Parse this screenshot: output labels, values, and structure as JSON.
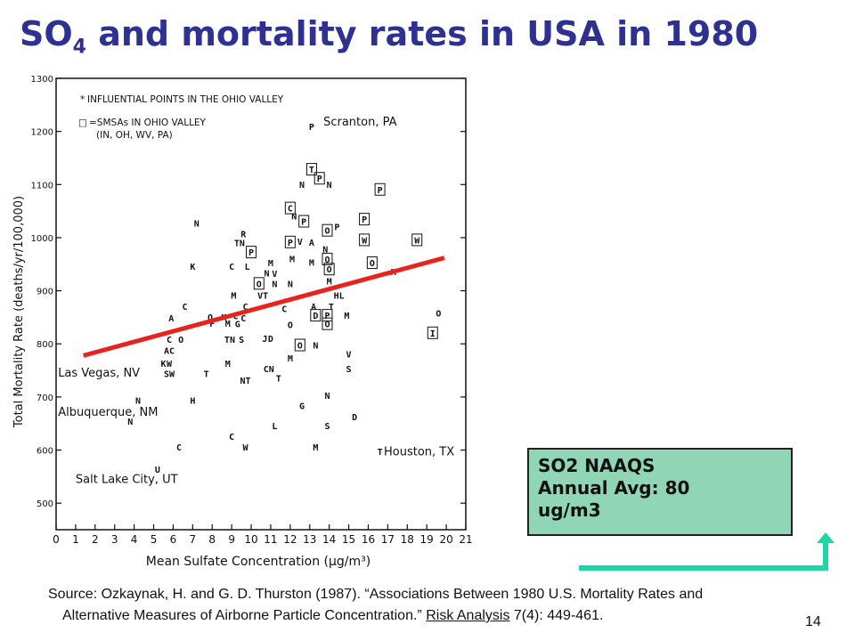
{
  "title": {
    "prefix": "SO",
    "subscript": "4",
    "suffix": " and  mortality rates in USA in 1980"
  },
  "chart_data": {
    "type": "scatter",
    "xlabel": "Mean Sulfate Concentration (μg/m³)",
    "ylabel": "Total Mortality Rate (deaths/yr/100,000)",
    "xlim": [
      0,
      21
    ],
    "ylim": [
      450,
      1300
    ],
    "x_ticks": [
      0,
      1,
      2,
      3,
      4,
      5,
      6,
      7,
      8,
      9,
      10,
      11,
      12,
      13,
      14,
      15,
      16,
      17,
      18,
      19,
      20,
      21
    ],
    "y_ticks": [
      500,
      600,
      700,
      800,
      900,
      1000,
      1100,
      1200,
      1300
    ],
    "legend": [
      {
        "symbol": "*",
        "label": "INFLUENTIAL POINTS IN THE OHIO VALLEY"
      },
      {
        "symbol": "□",
        "label": "=SMSAs  IN  OHIO VALLEY"
      },
      {
        "symbol": "",
        "label": "(IN, OH, WV, PA)"
      }
    ],
    "annotations": [
      {
        "text": "Scranton, PA",
        "x": 13.7,
        "y": 1211
      },
      {
        "text": "Las Vegas, NV",
        "x": 0.1,
        "y": 738
      },
      {
        "text": "Albuquerque, NM",
        "x": 0.1,
        "y": 665
      },
      {
        "text": "Salt Lake City, UT",
        "x": 1.0,
        "y": 538
      },
      {
        "text": "Houston, TX",
        "x": 16.8,
        "y": 590
      }
    ],
    "points": [
      {
        "x": 13.1,
        "y": 1209,
        "m": "P",
        "box": false
      },
      {
        "x": 12.6,
        "y": 1100,
        "m": "N",
        "box": false
      },
      {
        "x": 13.1,
        "y": 1128,
        "m": "T",
        "box": true
      },
      {
        "x": 13.5,
        "y": 1111,
        "m": "P",
        "box": true
      },
      {
        "x": 14.0,
        "y": 1100,
        "m": "N",
        "box": false
      },
      {
        "x": 16.6,
        "y": 1090,
        "m": "P",
        "box": true
      },
      {
        "x": 12.0,
        "y": 1055,
        "m": "C",
        "box": true
      },
      {
        "x": 12.2,
        "y": 1040,
        "m": "N",
        "box": false
      },
      {
        "x": 12.7,
        "y": 1030,
        "m": "P",
        "box": true
      },
      {
        "x": 13.9,
        "y": 1013,
        "m": "O",
        "box": true
      },
      {
        "x": 15.8,
        "y": 1034,
        "m": "P",
        "box": true
      },
      {
        "x": 14.4,
        "y": 1020,
        "m": "P",
        "box": false
      },
      {
        "x": 7.2,
        "y": 1027,
        "m": "N",
        "box": false
      },
      {
        "x": 9.6,
        "y": 1007,
        "m": "R",
        "box": false
      },
      {
        "x": 9.4,
        "y": 990,
        "m": "TN",
        "box": false
      },
      {
        "x": 10.0,
        "y": 972,
        "m": "P",
        "box": true
      },
      {
        "x": 12.0,
        "y": 991,
        "m": "P",
        "box": true
      },
      {
        "x": 12.5,
        "y": 992,
        "m": "V",
        "box": false
      },
      {
        "x": 13.1,
        "y": 991,
        "m": "A",
        "box": false
      },
      {
        "x": 13.8,
        "y": 978,
        "m": "N",
        "box": false
      },
      {
        "x": 15.8,
        "y": 995,
        "m": "W",
        "box": true
      },
      {
        "x": 18.5,
        "y": 995,
        "m": "W",
        "box": true
      },
      {
        "x": 7.0,
        "y": 945,
        "m": "K",
        "box": false
      },
      {
        "x": 9.0,
        "y": 945,
        "m": "C",
        "box": false
      },
      {
        "x": 9.8,
        "y": 945,
        "m": "L",
        "box": false
      },
      {
        "x": 11.0,
        "y": 952,
        "m": "M",
        "box": false
      },
      {
        "x": 12.1,
        "y": 960,
        "m": "M",
        "box": false
      },
      {
        "x": 13.1,
        "y": 953,
        "m": "M",
        "box": false
      },
      {
        "x": 13.9,
        "y": 959,
        "m": "O",
        "box": true
      },
      {
        "x": 14.0,
        "y": 940,
        "m": "O",
        "box": true
      },
      {
        "x": 16.2,
        "y": 952,
        "m": "O",
        "box": true
      },
      {
        "x": 10.8,
        "y": 933,
        "m": "N",
        "box": false
      },
      {
        "x": 11.2,
        "y": 932,
        "m": "V",
        "box": false
      },
      {
        "x": 10.4,
        "y": 913,
        "m": "O",
        "box": true
      },
      {
        "x": 11.2,
        "y": 913,
        "m": "N",
        "box": false
      },
      {
        "x": 12.0,
        "y": 913,
        "m": "N",
        "box": false
      },
      {
        "x": 14.0,
        "y": 918,
        "m": "M",
        "box": false
      },
      {
        "x": 17.3,
        "y": 935,
        "m": "M",
        "box": false
      },
      {
        "x": 9.1,
        "y": 891,
        "m": "M",
        "box": false
      },
      {
        "x": 10.6,
        "y": 891,
        "m": "VT",
        "box": false
      },
      {
        "x": 14.5,
        "y": 891,
        "m": "HL",
        "box": false
      },
      {
        "x": 6.6,
        "y": 870,
        "m": "C",
        "box": false
      },
      {
        "x": 9.7,
        "y": 870,
        "m": "C",
        "box": false
      },
      {
        "x": 11.7,
        "y": 866,
        "m": "C",
        "box": false
      },
      {
        "x": 13.2,
        "y": 870,
        "m": "A",
        "box": false
      },
      {
        "x": 14.1,
        "y": 870,
        "m": "T",
        "box": false
      },
      {
        "x": 5.9,
        "y": 848,
        "m": "A",
        "box": false
      },
      {
        "x": 7.9,
        "y": 850,
        "m": "O",
        "box": false
      },
      {
        "x": 8.6,
        "y": 850,
        "m": "M",
        "box": false
      },
      {
        "x": 9.2,
        "y": 852,
        "m": "C",
        "box": false
      },
      {
        "x": 9.6,
        "y": 848,
        "m": "C",
        "box": false
      },
      {
        "x": 13.3,
        "y": 853,
        "m": "D",
        "box": true
      },
      {
        "x": 13.9,
        "y": 853,
        "m": "P",
        "box": true
      },
      {
        "x": 14.9,
        "y": 853,
        "m": "M",
        "box": false
      },
      {
        "x": 19.6,
        "y": 857,
        "m": "O",
        "box": false
      },
      {
        "x": 8.0,
        "y": 838,
        "m": "F",
        "box": false
      },
      {
        "x": 8.8,
        "y": 838,
        "m": "M",
        "box": false
      },
      {
        "x": 9.3,
        "y": 837,
        "m": "G",
        "box": false
      },
      {
        "x": 12.0,
        "y": 836,
        "m": "O",
        "box": false
      },
      {
        "x": 13.9,
        "y": 837,
        "m": "O",
        "box": true
      },
      {
        "x": 19.3,
        "y": 820,
        "m": "I",
        "box": true
      },
      {
        "x": 5.8,
        "y": 808,
        "m": "C",
        "box": false
      },
      {
        "x": 6.4,
        "y": 808,
        "m": "O",
        "box": false
      },
      {
        "x": 8.9,
        "y": 808,
        "m": "TN",
        "box": false
      },
      {
        "x": 9.5,
        "y": 808,
        "m": "S",
        "box": false
      },
      {
        "x": 10.7,
        "y": 810,
        "m": "J",
        "box": false
      },
      {
        "x": 11.0,
        "y": 810,
        "m": "D",
        "box": false
      },
      {
        "x": 12.5,
        "y": 797,
        "m": "O",
        "box": true
      },
      {
        "x": 13.3,
        "y": 797,
        "m": "N",
        "box": false
      },
      {
        "x": 5.8,
        "y": 787,
        "m": "AC",
        "box": false
      },
      {
        "x": 15.0,
        "y": 780,
        "m": "V",
        "box": false
      },
      {
        "x": 5.5,
        "y": 763,
        "m": "K",
        "box": false
      },
      {
        "x": 5.8,
        "y": 763,
        "m": "W",
        "box": false
      },
      {
        "x": 8.8,
        "y": 763,
        "m": "M",
        "box": false
      },
      {
        "x": 12.0,
        "y": 773,
        "m": "M",
        "box": false
      },
      {
        "x": 5.8,
        "y": 743,
        "m": "SW",
        "box": false
      },
      {
        "x": 7.7,
        "y": 743,
        "m": "T",
        "box": false
      },
      {
        "x": 10.9,
        "y": 753,
        "m": "CN",
        "box": false
      },
      {
        "x": 15.0,
        "y": 753,
        "m": "S",
        "box": false
      },
      {
        "x": 9.7,
        "y": 731,
        "m": "NT",
        "box": false
      },
      {
        "x": 11.4,
        "y": 735,
        "m": "T",
        "box": false
      },
      {
        "x": 4.2,
        "y": 693,
        "m": "N",
        "box": false
      },
      {
        "x": 7.0,
        "y": 693,
        "m": "H",
        "box": false
      },
      {
        "x": 13.9,
        "y": 702,
        "m": "N",
        "box": false
      },
      {
        "x": 12.6,
        "y": 683,
        "m": "G",
        "box": false
      },
      {
        "x": 15.3,
        "y": 662,
        "m": "D",
        "box": false
      },
      {
        "x": 3.8,
        "y": 654,
        "m": "N",
        "box": false
      },
      {
        "x": 11.2,
        "y": 645,
        "m": "L",
        "box": false
      },
      {
        "x": 13.9,
        "y": 645,
        "m": "S",
        "box": false
      },
      {
        "x": 9.0,
        "y": 625,
        "m": "C",
        "box": false
      },
      {
        "x": 16.6,
        "y": 597,
        "m": "T",
        "box": false
      },
      {
        "x": 6.3,
        "y": 605,
        "m": "C",
        "box": false
      },
      {
        "x": 9.7,
        "y": 605,
        "m": "W",
        "box": false
      },
      {
        "x": 13.3,
        "y": 605,
        "m": "M",
        "box": false
      },
      {
        "x": 5.2,
        "y": 563,
        "m": "U",
        "box": false
      }
    ],
    "trend_line": {
      "x": [
        1.4,
        19.9
      ],
      "y": [
        778,
        962
      ],
      "color": "#e8231d"
    }
  },
  "naaqs": {
    "line1": "SO2 NAAQS",
    "line2": "Annual Avg: 80",
    "line3": "ug/m3"
  },
  "arrow_color": "#1fd6a6",
  "source": {
    "label": "Source:",
    "part1": "  Ozkaynak, H. and G. D. Thurston (1987). “Associations Between 1980 U.S. Mortality Rates and",
    "part2": "Alternative Measures of Airborne Particle Concentration.” ",
    "journal": "Risk Analysis",
    "volume": " 7",
    "pages": "(4): 449-461."
  },
  "page_number": "14"
}
